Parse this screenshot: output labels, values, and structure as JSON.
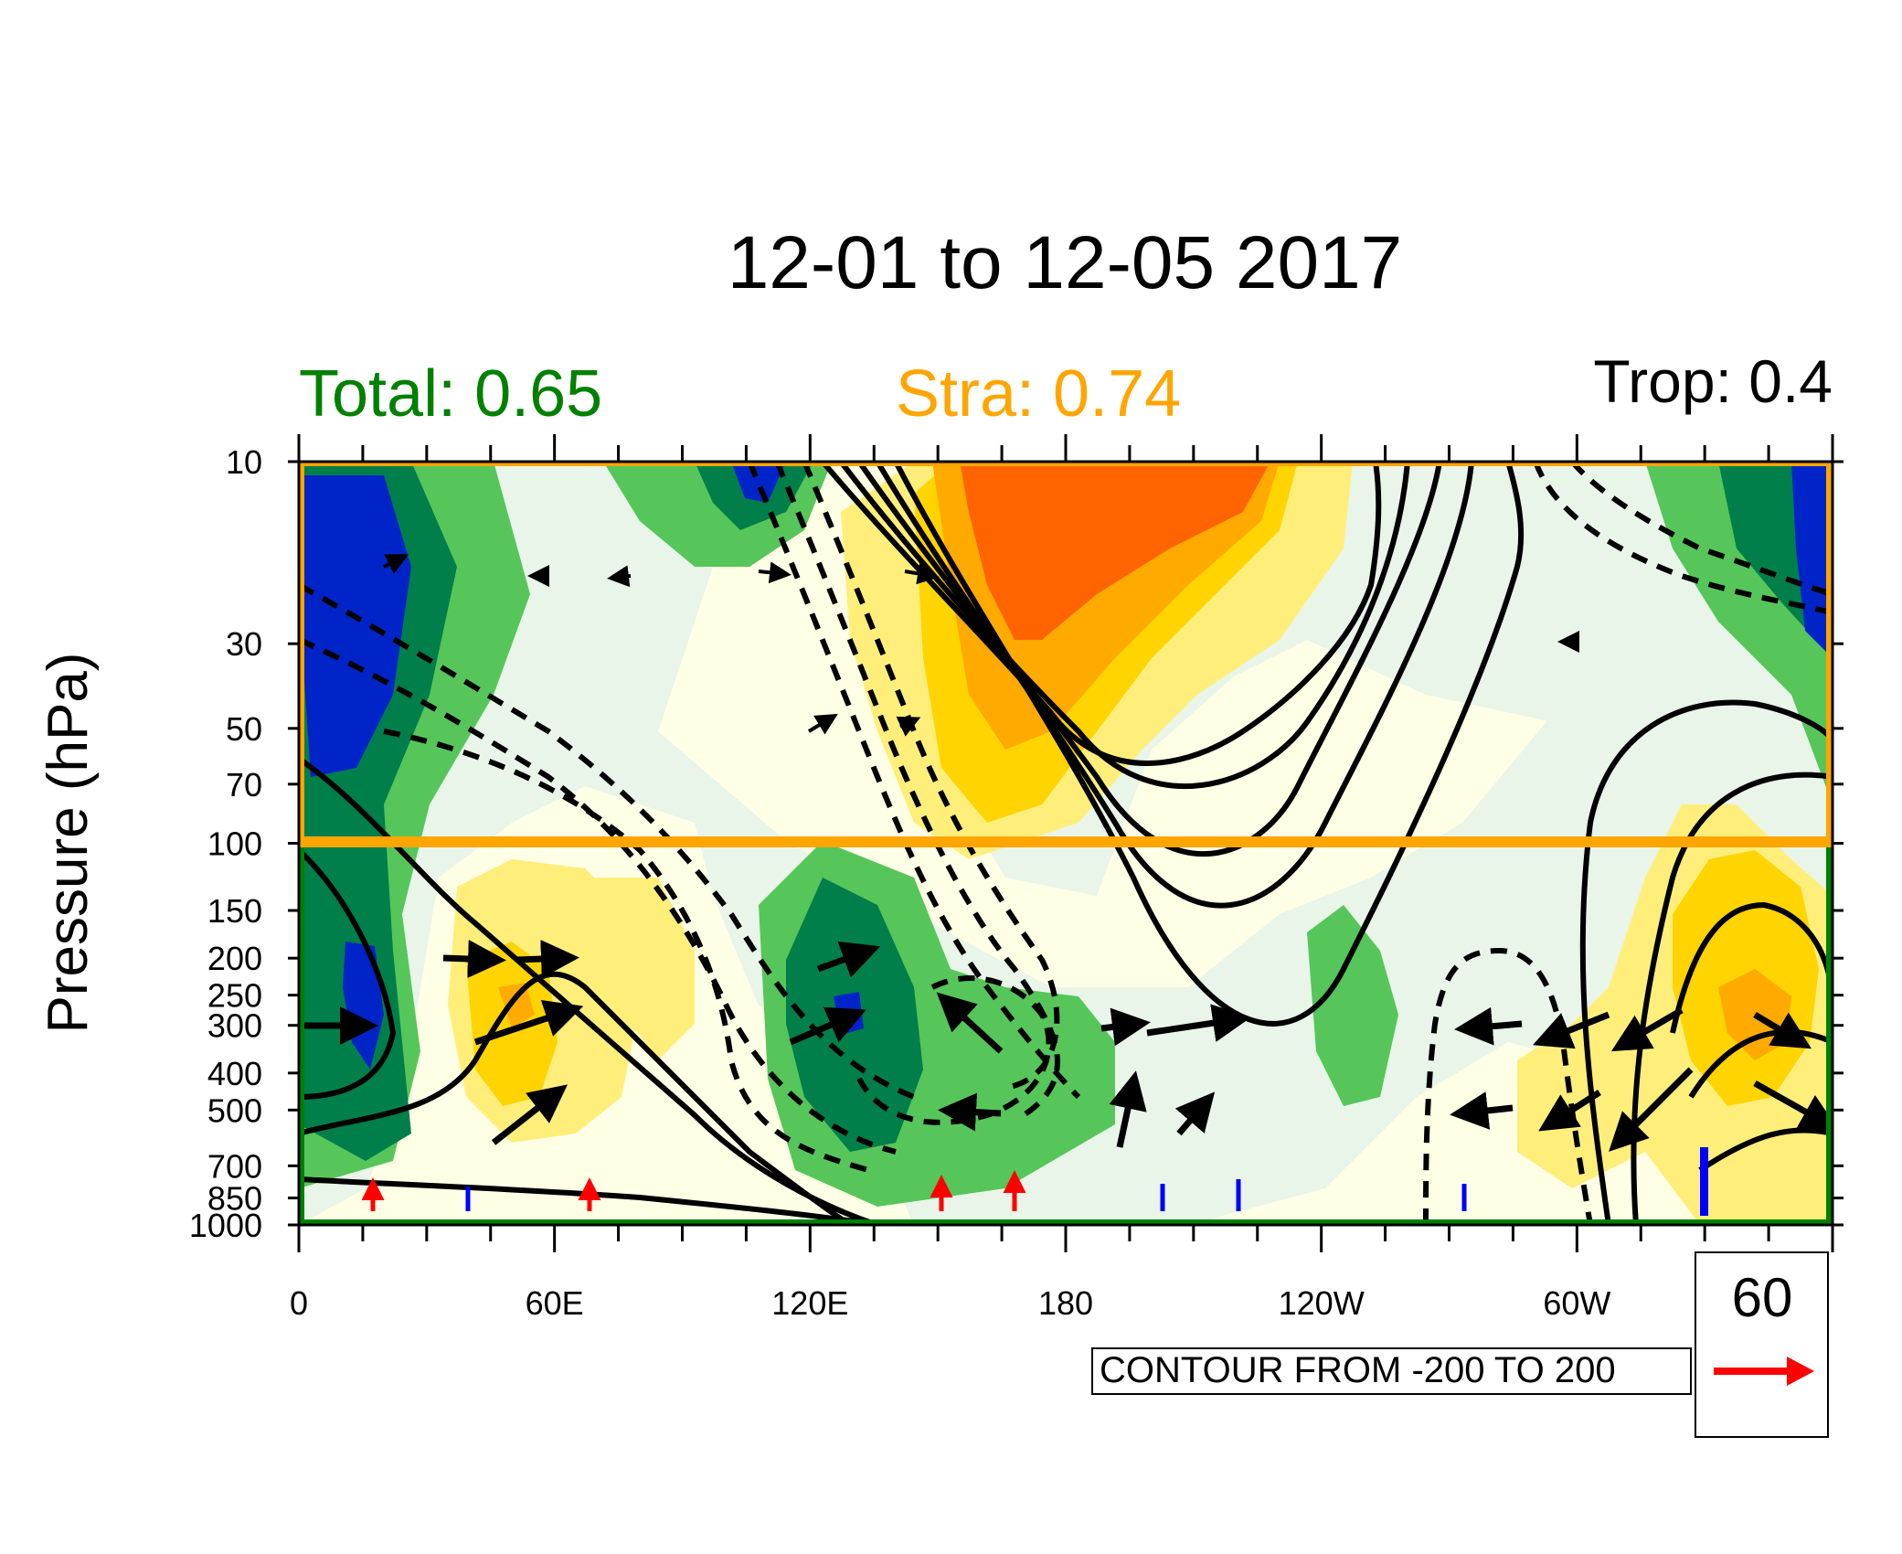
{
  "chart_data": {
    "type": "heatmap",
    "title": "12-01 to 12-05 2017",
    "ylabel": "Pressure (hPa)",
    "xlabel": "",
    "y_scale": "log",
    "ylim": [
      1000,
      10
    ],
    "x_ticks": [
      "0",
      "60E",
      "120E",
      "180",
      "120W",
      "60W"
    ],
    "y_ticks": [
      "10",
      "30",
      "50",
      "70",
      "100",
      "150",
      "200",
      "250",
      "300",
      "400",
      "500",
      "700",
      "850",
      "1000"
    ],
    "y_tick_values": [
      10,
      30,
      50,
      70,
      100,
      150,
      200,
      250,
      300,
      400,
      500,
      700,
      850,
      1000
    ],
    "boundary_level": 100,
    "stats": [
      {
        "label": "Total: 0.65",
        "color": "#008000"
      },
      {
        "label": "Stra: 0.74",
        "color": "#ffa500"
      },
      {
        "label": "Trop: 0.4",
        "color": "#000000"
      }
    ],
    "contour_info": "CONTOUR FROM -200 TO 200",
    "ref_vector": {
      "value": "60",
      "color": "#ff0000"
    },
    "colors": {
      "fill_levels": [
        "#0024c8",
        "#007f4a",
        "#56c65a",
        "#e8f5e8",
        "#ffffe6",
        "#ffef7a",
        "#ffd400",
        "#ffaa00",
        "#ff6400"
      ],
      "strat_box": "#ffa500",
      "trop_box": "#008000"
    }
  }
}
